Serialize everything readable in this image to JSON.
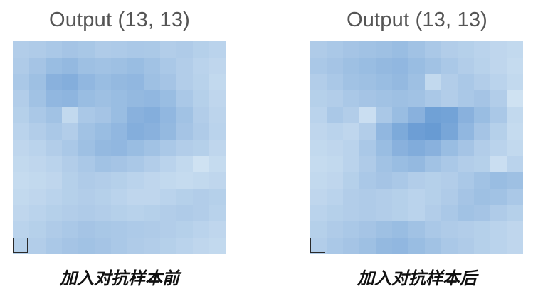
{
  "panels": [
    {
      "title": "Output (13, 13)",
      "caption": "加入对抗样本前",
      "grid": [
        [
          0.3,
          0.32,
          0.35,
          0.38,
          0.36,
          0.32,
          0.33,
          0.35,
          0.34,
          0.3,
          0.32,
          0.28,
          0.25
        ],
        [
          0.32,
          0.38,
          0.45,
          0.48,
          0.42,
          0.4,
          0.42,
          0.45,
          0.4,
          0.35,
          0.3,
          0.25,
          0.22
        ],
        [
          0.35,
          0.42,
          0.55,
          0.58,
          0.5,
          0.45,
          0.48,
          0.5,
          0.42,
          0.38,
          0.3,
          0.26,
          0.2
        ],
        [
          0.3,
          0.4,
          0.5,
          0.52,
          0.45,
          0.42,
          0.45,
          0.48,
          0.5,
          0.45,
          0.35,
          0.28,
          0.22
        ],
        [
          0.28,
          0.35,
          0.4,
          0.2,
          0.35,
          0.38,
          0.45,
          0.55,
          0.58,
          0.5,
          0.4,
          0.3,
          0.24
        ],
        [
          0.25,
          0.3,
          0.35,
          0.3,
          0.4,
          0.45,
          0.5,
          0.58,
          0.55,
          0.48,
          0.38,
          0.32,
          0.25
        ],
        [
          0.22,
          0.25,
          0.3,
          0.35,
          0.42,
          0.48,
          0.5,
          0.45,
          0.4,
          0.35,
          0.3,
          0.28,
          0.22
        ],
        [
          0.2,
          0.22,
          0.25,
          0.3,
          0.35,
          0.4,
          0.38,
          0.35,
          0.3,
          0.25,
          0.2,
          0.12,
          0.18
        ],
        [
          0.18,
          0.2,
          0.22,
          0.28,
          0.32,
          0.3,
          0.28,
          0.25,
          0.22,
          0.2,
          0.18,
          0.2,
          0.22
        ],
        [
          0.2,
          0.22,
          0.25,
          0.28,
          0.3,
          0.28,
          0.25,
          0.22,
          0.22,
          0.25,
          0.28,
          0.3,
          0.28
        ],
        [
          0.22,
          0.25,
          0.28,
          0.3,
          0.32,
          0.3,
          0.28,
          0.26,
          0.28,
          0.3,
          0.32,
          0.3,
          0.26
        ],
        [
          0.25,
          0.28,
          0.32,
          0.35,
          0.38,
          0.36,
          0.35,
          0.33,
          0.32,
          0.3,
          0.28,
          0.25,
          0.22
        ],
        [
          0.28,
          0.3,
          0.35,
          0.38,
          0.4,
          0.38,
          0.35,
          0.32,
          0.3,
          0.28,
          0.25,
          0.22,
          0.2
        ]
      ]
    },
    {
      "title": "Output (13, 13)",
      "caption": "加入对抗样本后",
      "grid": [
        [
          0.32,
          0.35,
          0.38,
          0.4,
          0.42,
          0.45,
          0.4,
          0.35,
          0.3,
          0.28,
          0.25,
          0.22,
          0.2
        ],
        [
          0.35,
          0.38,
          0.42,
          0.45,
          0.48,
          0.5,
          0.45,
          0.4,
          0.35,
          0.3,
          0.26,
          0.22,
          0.18
        ],
        [
          0.3,
          0.35,
          0.4,
          0.42,
          0.45,
          0.48,
          0.42,
          0.2,
          0.3,
          0.35,
          0.3,
          0.25,
          0.2
        ],
        [
          0.28,
          0.3,
          0.35,
          0.38,
          0.4,
          0.42,
          0.4,
          0.35,
          0.3,
          0.35,
          0.38,
          0.3,
          0.12
        ],
        [
          0.25,
          0.35,
          0.3,
          0.15,
          0.35,
          0.45,
          0.55,
          0.7,
          0.68,
          0.55,
          0.45,
          0.35,
          0.2
        ],
        [
          0.22,
          0.25,
          0.22,
          0.3,
          0.5,
          0.62,
          0.72,
          0.75,
          0.65,
          0.5,
          0.38,
          0.28,
          0.18
        ],
        [
          0.2,
          0.22,
          0.25,
          0.35,
          0.45,
          0.55,
          0.6,
          0.55,
          0.45,
          0.38,
          0.3,
          0.25,
          0.2
        ],
        [
          0.18,
          0.2,
          0.25,
          0.32,
          0.4,
          0.45,
          0.48,
          0.4,
          0.35,
          0.3,
          0.28,
          0.15,
          0.25
        ],
        [
          0.2,
          0.22,
          0.28,
          0.35,
          0.38,
          0.35,
          0.3,
          0.28,
          0.3,
          0.35,
          0.4,
          0.45,
          0.42
        ],
        [
          0.22,
          0.25,
          0.3,
          0.32,
          0.3,
          0.28,
          0.25,
          0.28,
          0.32,
          0.38,
          0.42,
          0.4,
          0.35
        ],
        [
          0.25,
          0.28,
          0.3,
          0.32,
          0.3,
          0.28,
          0.25,
          0.3,
          0.35,
          0.4,
          0.38,
          0.32,
          0.28
        ],
        [
          0.28,
          0.32,
          0.35,
          0.38,
          0.42,
          0.45,
          0.4,
          0.35,
          0.32,
          0.3,
          0.28,
          0.25,
          0.22
        ],
        [
          0.3,
          0.35,
          0.38,
          0.42,
          0.48,
          0.5,
          0.45,
          0.4,
          0.35,
          0.32,
          0.28,
          0.25,
          0.22
        ]
      ]
    }
  ],
  "colors": {
    "low": "#e3eff8",
    "high": "#3f7fc7"
  }
}
